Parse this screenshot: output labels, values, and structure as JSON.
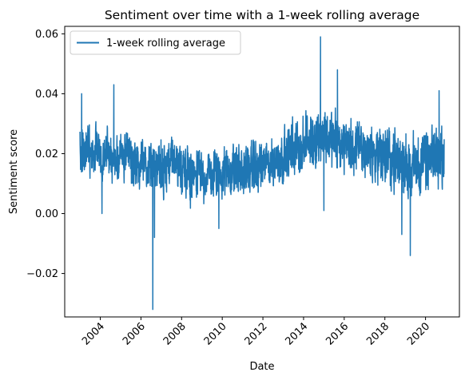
{
  "chart_data": {
    "type": "line",
    "title": "Sentiment over time with a 1-week rolling average",
    "xlabel": "Date",
    "ylabel": "Sentiment score",
    "x_ticks": [
      "2004",
      "2006",
      "2008",
      "2010",
      "2012",
      "2014",
      "2016",
      "2018",
      "2020"
    ],
    "y_ticks": [
      "−0.02",
      "0.00",
      "0.02",
      "0.04",
      "0.06"
    ],
    "xlim": [
      "2002-04-01",
      "2021-09-01"
    ],
    "ylim": [
      -0.0345,
      0.0625
    ],
    "grid": false,
    "legend_position": "top-left",
    "series": [
      {
        "name": "1-week rolling average",
        "color": "#1f77b4",
        "x": [
          "2003-01",
          "2003-07",
          "2004-01",
          "2004-07",
          "2005-01",
          "2005-07",
          "2006-01",
          "2006-07",
          "2007-01",
          "2007-07",
          "2008-01",
          "2008-07",
          "2009-01",
          "2009-07",
          "2010-01",
          "2010-07",
          "2011-01",
          "2011-07",
          "2012-01",
          "2012-07",
          "2013-01",
          "2013-07",
          "2014-01",
          "2014-07",
          "2015-01",
          "2015-07",
          "2016-01",
          "2016-07",
          "2017-01",
          "2017-07",
          "2018-01",
          "2018-07",
          "2019-01",
          "2019-07",
          "2020-01",
          "2020-07",
          "2020-12"
        ],
        "y": [
          0.021,
          0.021,
          0.02,
          0.019,
          0.019,
          0.018,
          0.017,
          0.016,
          0.016,
          0.016,
          0.015,
          0.014,
          0.013,
          0.013,
          0.014,
          0.014,
          0.014,
          0.015,
          0.016,
          0.017,
          0.019,
          0.021,
          0.023,
          0.025,
          0.026,
          0.024,
          0.023,
          0.022,
          0.021,
          0.02,
          0.019,
          0.018,
          0.016,
          0.016,
          0.017,
          0.019,
          0.02
        ],
        "band_low": [
          0.012,
          0.012,
          0.011,
          0.01,
          0.01,
          0.009,
          0.008,
          0.007,
          0.006,
          0.006,
          0.005,
          0.004,
          0.003,
          0.003,
          0.004,
          0.004,
          0.004,
          0.005,
          0.006,
          0.008,
          0.01,
          0.012,
          0.014,
          0.016,
          0.016,
          0.014,
          0.013,
          0.012,
          0.011,
          0.01,
          0.008,
          0.005,
          0.003,
          0.005,
          0.007,
          0.01,
          0.01
        ],
        "band_high": [
          0.031,
          0.031,
          0.03,
          0.029,
          0.029,
          0.028,
          0.027,
          0.026,
          0.026,
          0.026,
          0.025,
          0.024,
          0.023,
          0.023,
          0.024,
          0.024,
          0.024,
          0.025,
          0.026,
          0.027,
          0.03,
          0.033,
          0.035,
          0.037,
          0.038,
          0.036,
          0.034,
          0.033,
          0.032,
          0.031,
          0.03,
          0.029,
          0.028,
          0.029,
          0.03,
          0.031,
          0.033
        ],
        "extremes": [
          {
            "x": "2003-02",
            "y": 0.04
          },
          {
            "x": "2004-02",
            "y": 0.0
          },
          {
            "x": "2004-09",
            "y": 0.043
          },
          {
            "x": "2006-08",
            "y": -0.032
          },
          {
            "x": "2006-09",
            "y": -0.008
          },
          {
            "x": "2009-11",
            "y": -0.005
          },
          {
            "x": "2014-11",
            "y": 0.059
          },
          {
            "x": "2015-01",
            "y": 0.001
          },
          {
            "x": "2015-09",
            "y": 0.048
          },
          {
            "x": "2018-11",
            "y": -0.007
          },
          {
            "x": "2019-04",
            "y": -0.014
          },
          {
            "x": "2020-09",
            "y": 0.041
          }
        ]
      }
    ]
  }
}
